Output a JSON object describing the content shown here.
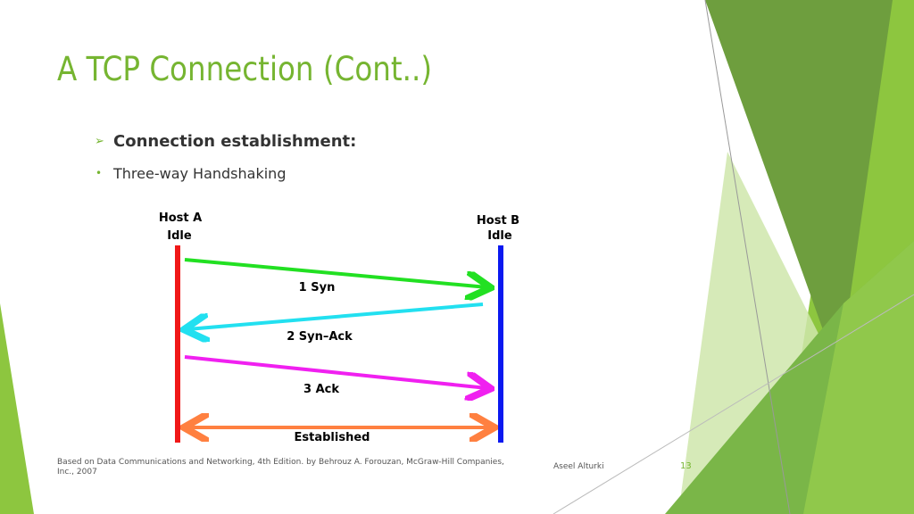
{
  "header": {
    "title": "A TCP Connection (Cont..)"
  },
  "bullets": [
    {
      "marker": "➢",
      "text": "Connection establishment:"
    },
    {
      "marker": "•",
      "text": "Three-way Handshaking"
    }
  ],
  "diagram": {
    "host_a": {
      "name": "Host A",
      "state": "Idle"
    },
    "host_b": {
      "name": "Host B",
      "state": "Idle"
    },
    "messages": [
      "1  Syn",
      "2 Syn–Ack",
      "3 Ack",
      "Established"
    ]
  },
  "footer": {
    "source": "Based on Data Communications and Networking, 4th Edition. by Behrouz A. Forouzan,   McGraw-Hill Companies, Inc., 2007",
    "author": "Aseel Alturki",
    "page_number": "13"
  }
}
